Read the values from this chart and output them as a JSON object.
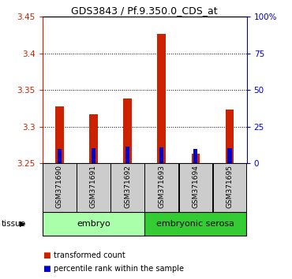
{
  "title": "GDS3843 / Pf.9.350.0_CDS_at",
  "samples": [
    "GSM371690",
    "GSM371691",
    "GSM371692",
    "GSM371693",
    "GSM371694",
    "GSM371695"
  ],
  "tissue_groups": [
    {
      "label": "embryo",
      "samples": [
        0,
        1,
        2
      ],
      "color": "#aaffaa"
    },
    {
      "label": "embryonic serosa",
      "samples": [
        3,
        4,
        5
      ],
      "color": "#33cc33"
    }
  ],
  "red_values": [
    3.328,
    3.317,
    3.338,
    3.427,
    3.263,
    3.323
  ],
  "blue_values": [
    3.27,
    3.271,
    3.273,
    3.272,
    3.269,
    3.271
  ],
  "y_min": 3.25,
  "y_max": 3.45,
  "y_ticks": [
    3.25,
    3.3,
    3.35,
    3.4,
    3.45
  ],
  "y_ticks_right": [
    0,
    25,
    50,
    75,
    100
  ],
  "y_ticks_right_labels": [
    "0",
    "25",
    "50",
    "75",
    "100%"
  ],
  "red_color": "#cc2200",
  "blue_color": "#0000cc",
  "bar_width": 0.25,
  "blue_bar_width": 0.12,
  "left_tick_color": "#cc2200",
  "right_tick_color": "#0000cc",
  "tissue_label": "tissue",
  "legend_items": [
    {
      "color": "#cc2200",
      "label": "transformed count"
    },
    {
      "color": "#0000cc",
      "label": "percentile rank within the sample"
    }
  ],
  "sample_box_color": "#cccccc",
  "grid_linestyle": "dotted",
  "grid_color": "black",
  "grid_linewidth": 0.7
}
